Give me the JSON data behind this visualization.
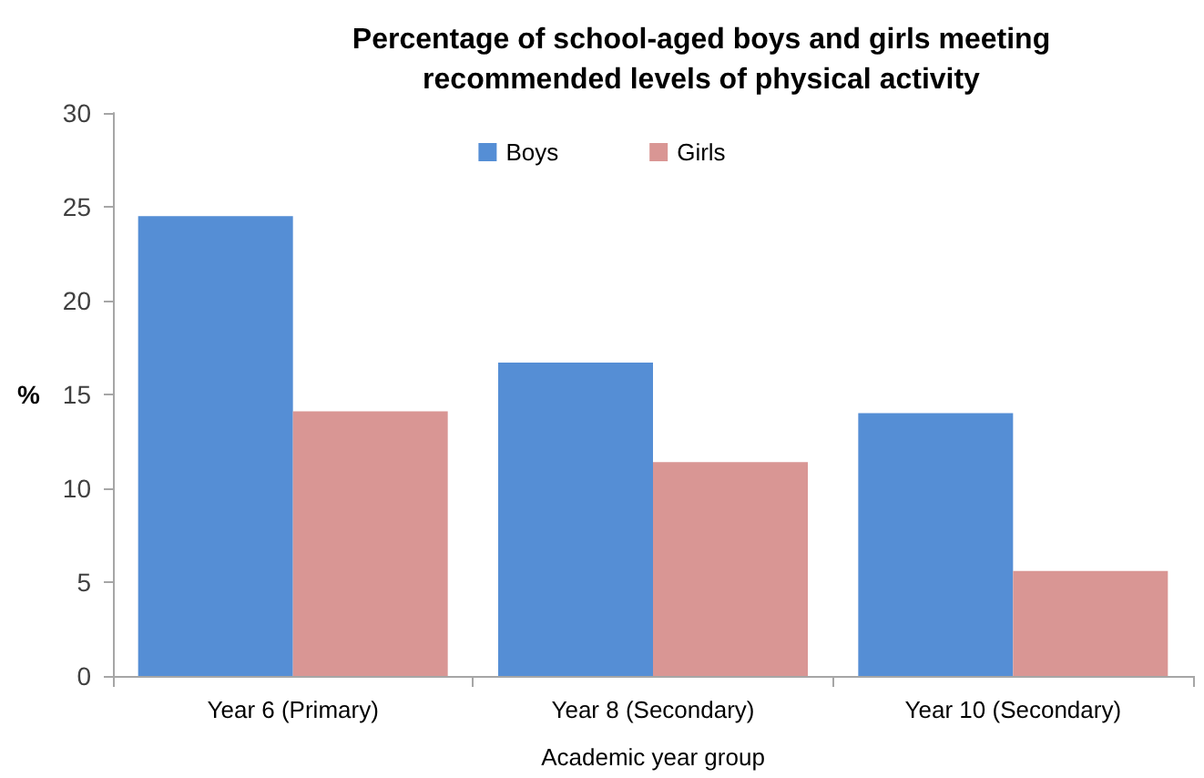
{
  "chart_data": {
    "type": "bar",
    "title": "Percentage of school-aged boys and girls meeting\nrecommended levels of physical activity",
    "xlabel": "Academic year group",
    "ylabel": "%",
    "categories": [
      "Year 6 (Primary)",
      "Year 8 (Secondary)",
      "Year 10 (Secondary)"
    ],
    "series": [
      {
        "name": "Boys",
        "color": "#558ed5",
        "values": [
          24.5,
          16.7,
          14.0
        ]
      },
      {
        "name": "Girls",
        "color": "#d99694",
        "values": [
          14.1,
          11.4,
          5.6
        ]
      }
    ],
    "ylim": [
      0,
      30
    ],
    "yticks": [
      0,
      5,
      10,
      15,
      20,
      25,
      30
    ],
    "grid": false,
    "legend": "top"
  }
}
